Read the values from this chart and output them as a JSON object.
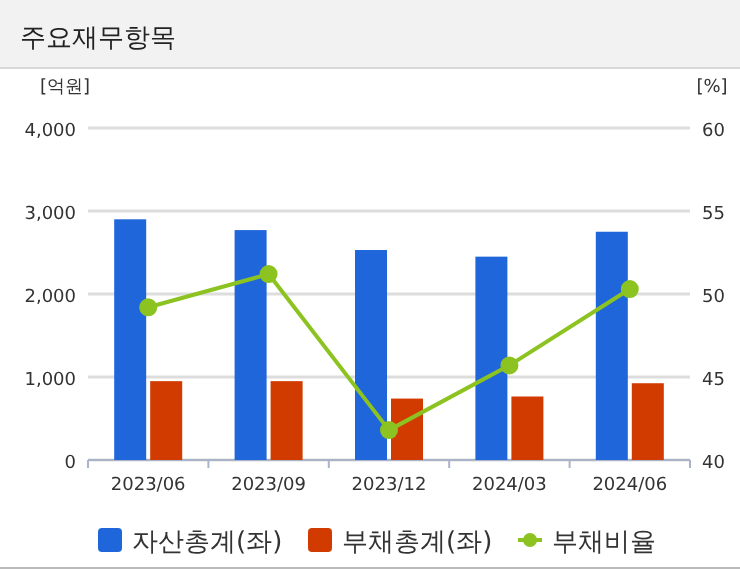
{
  "chart_data": {
    "type": "bar",
    "title": "주요재무항목",
    "ylabel": "[억원]",
    "y2label": "[%]",
    "categories": [
      "2023/06",
      "2023/09",
      "2023/12",
      "2024/03",
      "2024/06"
    ],
    "series": [
      {
        "name": "자산총계(좌)",
        "color": "#1f66db",
        "values": [
          2900,
          2770,
          2530,
          2450,
          2750
        ]
      },
      {
        "name": "부채총계(좌)",
        "color": "#d13b00",
        "values": [
          950,
          950,
          740,
          765,
          925
        ]
      },
      {
        "name": "부채비율",
        "type": "line",
        "axis": "y2",
        "color": "#8cc320",
        "marker": "circle",
        "values": [
          49.2,
          51.2,
          41.8,
          45.7,
          50.3
        ]
      }
    ],
    "ylim": [
      0,
      4000
    ],
    "yticks": [
      0,
      {
        "value": 1000,
        "label": "1,000"
      },
      {
        "value": 2000,
        "label": "2,000"
      },
      {
        "value": 3000,
        "label": "3,000"
      },
      {
        "value": 4000,
        "label": "4,000"
      }
    ],
    "y2lim": [
      40,
      60
    ],
    "y2ticks": [
      40,
      45,
      50,
      55,
      60
    ],
    "grid": "y",
    "legend": "bottom"
  }
}
